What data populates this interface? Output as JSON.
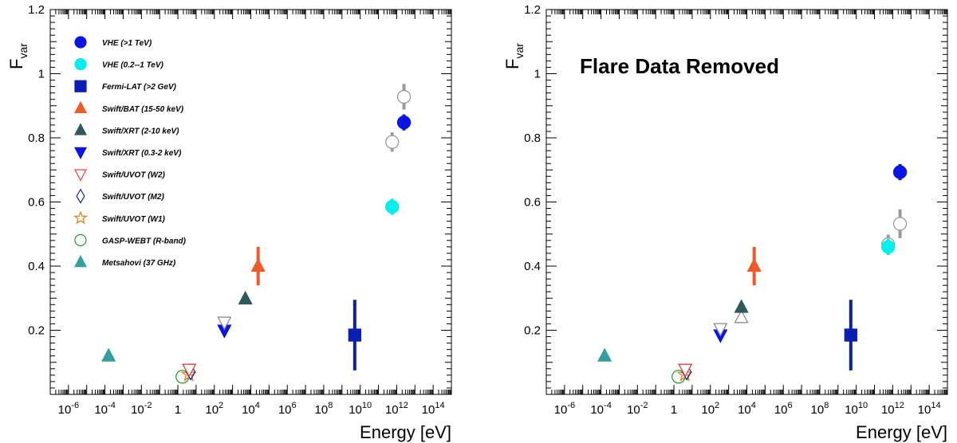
{
  "chart_data": [
    {
      "type": "scatter",
      "panel": "left",
      "title": "",
      "annotation": "",
      "xlabel": "Energy [eV]",
      "ylabel": "F",
      "ylabel_sub": "var",
      "xscale": "log",
      "xlim_log10": [
        -7,
        15
      ],
      "ylim": [
        0,
        1.2
      ],
      "xticks": [
        {
          "base": "10",
          "exp": "-6",
          "log": -6
        },
        {
          "base": "10",
          "exp": "-4",
          "log": -4
        },
        {
          "base": "10",
          "exp": "-2",
          "log": -2
        },
        {
          "base": "1",
          "exp": "",
          "log": 0
        },
        {
          "base": "10",
          "exp": "2",
          "log": 2
        },
        {
          "base": "10",
          "exp": "4",
          "log": 4
        },
        {
          "base": "10",
          "exp": "6",
          "log": 6
        },
        {
          "base": "10",
          "exp": "8",
          "log": 8
        },
        {
          "base": "10",
          "exp": "10",
          "log": 10
        },
        {
          "base": "10",
          "exp": "12",
          "log": 12
        },
        {
          "base": "10",
          "exp": "14",
          "log": 14
        }
      ],
      "yticks": [
        {
          "v": 0.2,
          "label": "0.2"
        },
        {
          "v": 0.4,
          "label": "0.4"
        },
        {
          "v": 0.6,
          "label": "0.6"
        },
        {
          "v": 0.8,
          "label": "0.8"
        },
        {
          "v": 1.0,
          "label": "1"
        },
        {
          "v": 1.2,
          "label": "1.2"
        }
      ],
      "legend": [
        {
          "name": "VHE (>1 TeV)",
          "marker": "circle",
          "color": "#0a14e6",
          "filled": true
        },
        {
          "name": "VHE (0.2--1 TeV)",
          "marker": "circle",
          "color": "#00f0f0",
          "filled": true
        },
        {
          "name": "Fermi-LAT (>2 GeV)",
          "marker": "square",
          "color": "#0a1eb4",
          "filled": true
        },
        {
          "name": "Swift/BAT (15-50 keV)",
          "marker": "triangle-up",
          "color": "#f05a28",
          "filled": true
        },
        {
          "name": "Swift/XRT (2-10 keV)",
          "marker": "triangle-up",
          "color": "#2e5a5c",
          "filled": true
        },
        {
          "name": "Swift/XRT (0.3-2 keV)",
          "marker": "triangle-down",
          "color": "#0a14e6",
          "filled": true
        },
        {
          "name": "Swift/UVOT (W2)",
          "marker": "triangle-down",
          "color": "#f03c3c",
          "filled": false
        },
        {
          "name": "Swift/UVOT (M2)",
          "marker": "diamond",
          "color": "#1428a0",
          "filled": false
        },
        {
          "name": "Swift/UVOT (W1)",
          "marker": "star",
          "color": "#e87a1e",
          "filled": false
        },
        {
          "name": "GASP-WEBT (R-band)",
          "marker": "circle",
          "color": "#28a028",
          "filled": false
        },
        {
          "name": "Metsahovi (37 GHz)",
          "marker": "triangle-up",
          "color": "#32a0a0",
          "filled": true
        }
      ],
      "points": [
        {
          "series": "Metsahovi (37 GHz)",
          "logx": -3.8,
          "y": 0.12,
          "err": 0,
          "marker": "triangle-up",
          "color": "#32a0a0",
          "filled": true
        },
        {
          "series": "GASP-WEBT (R-band)",
          "logx": 0.25,
          "y": 0.055,
          "err": 0,
          "marker": "circle",
          "color": "#28a028",
          "filled": false
        },
        {
          "series": "Swift/UVOT (W1)",
          "logx": 0.6,
          "y": 0.062,
          "err": 0,
          "marker": "star",
          "color": "#e87a1e",
          "filled": false
        },
        {
          "series": "Swift/UVOT (M2)",
          "logx": 0.7,
          "y": 0.07,
          "err": 0,
          "marker": "diamond",
          "color": "#1428a0",
          "filled": false
        },
        {
          "series": "Swift/UVOT (W2)",
          "logx": 0.62,
          "y": 0.078,
          "err": 0,
          "marker": "triangle-down",
          "color": "#f03c3c",
          "filled": false
        },
        {
          "series": "Swift/XRT (0.3-2 keV)",
          "logx": 2.55,
          "y": 0.2,
          "err": 0,
          "marker": "triangle-down",
          "color": "#0a14e6",
          "filled": true
        },
        {
          "series": "Swift/XRT (0.3-2 keV) flare",
          "logx": 2.55,
          "y": 0.225,
          "err": 0,
          "marker": "triangle-down",
          "color": "#8c8c8c",
          "filled": false
        },
        {
          "series": "Swift/XRT (2-10 keV)",
          "logx": 3.7,
          "y": 0.298,
          "err": 0,
          "marker": "triangle-up",
          "color": "#2e5a5c",
          "filled": true
        },
        {
          "series": "Swift/BAT (15-50 keV)",
          "logx": 4.4,
          "y": 0.4,
          "err": 0.06,
          "marker": "triangle-up",
          "color": "#f05a28",
          "filled": true
        },
        {
          "series": "Fermi-LAT (>2 GeV)",
          "logx": 9.7,
          "y": 0.185,
          "err": 0.11,
          "marker": "square",
          "color": "#0a1eb4",
          "filled": true
        },
        {
          "series": "VHE (0.2--1 TeV)",
          "logx": 11.75,
          "y": 0.585,
          "err": 0.025,
          "marker": "circle",
          "color": "#00f0f0",
          "filled": true
        },
        {
          "series": "VHE (0.2--1 TeV) flare",
          "logx": 11.75,
          "y": 0.787,
          "err": 0.03,
          "marker": "circle",
          "color": "#9a9a9a",
          "filled": false
        },
        {
          "series": "VHE (>1 TeV)",
          "logx": 12.4,
          "y": 0.848,
          "err": 0.025,
          "marker": "circle",
          "color": "#0a14e6",
          "filled": true
        },
        {
          "series": "VHE (>1 TeV) flare",
          "logx": 12.4,
          "y": 0.928,
          "err": 0.04,
          "marker": "circle",
          "color": "#9a9a9a",
          "filled": false
        }
      ]
    },
    {
      "type": "scatter",
      "panel": "right",
      "title": "",
      "annotation": "Flare Data Removed",
      "xlabel": "Energy [eV]",
      "ylabel": "F",
      "ylabel_sub": "var",
      "xscale": "log",
      "xlim_log10": [
        -7,
        15
      ],
      "ylim": [
        0,
        1.2
      ],
      "xticks": [
        {
          "base": "10",
          "exp": "-6",
          "log": -6
        },
        {
          "base": "10",
          "exp": "-4",
          "log": -4
        },
        {
          "base": "10",
          "exp": "-2",
          "log": -2
        },
        {
          "base": "1",
          "exp": "",
          "log": 0
        },
        {
          "base": "10",
          "exp": "2",
          "log": 2
        },
        {
          "base": "10",
          "exp": "4",
          "log": 4
        },
        {
          "base": "10",
          "exp": "6",
          "log": 6
        },
        {
          "base": "10",
          "exp": "8",
          "log": 8
        },
        {
          "base": "10",
          "exp": "10",
          "log": 10
        },
        {
          "base": "10",
          "exp": "12",
          "log": 12
        },
        {
          "base": "10",
          "exp": "14",
          "log": 14
        }
      ],
      "yticks": [
        {
          "v": 0.2,
          "label": "0.2"
        },
        {
          "v": 0.4,
          "label": "0.4"
        },
        {
          "v": 0.6,
          "label": "0.6"
        },
        {
          "v": 0.8,
          "label": "0.8"
        },
        {
          "v": 1.0,
          "label": "1"
        },
        {
          "v": 1.2,
          "label": "1.2"
        }
      ],
      "legend": [],
      "points": [
        {
          "series": "Metsahovi (37 GHz)",
          "logx": -3.8,
          "y": 0.12,
          "err": 0,
          "marker": "triangle-up",
          "color": "#32a0a0",
          "filled": true
        },
        {
          "series": "GASP-WEBT (R-band)",
          "logx": 0.25,
          "y": 0.055,
          "err": 0,
          "marker": "circle",
          "color": "#28a028",
          "filled": false
        },
        {
          "series": "Swift/UVOT (W1)",
          "logx": 0.6,
          "y": 0.062,
          "err": 0,
          "marker": "star",
          "color": "#e87a1e",
          "filled": false
        },
        {
          "series": "Swift/UVOT (M2)",
          "logx": 0.7,
          "y": 0.07,
          "err": 0,
          "marker": "diamond",
          "color": "#1428a0",
          "filled": false
        },
        {
          "series": "Swift/UVOT (W2)",
          "logx": 0.62,
          "y": 0.078,
          "err": 0,
          "marker": "triangle-down",
          "color": "#f03c3c",
          "filled": false
        },
        {
          "series": "Swift/XRT (0.3-2 keV)",
          "logx": 2.55,
          "y": 0.185,
          "err": 0,
          "marker": "triangle-down",
          "color": "#0a14e6",
          "filled": true
        },
        {
          "series": "Swift/XRT (0.3-2 keV) flare",
          "logx": 2.55,
          "y": 0.205,
          "err": 0,
          "marker": "triangle-down",
          "color": "#8c8c8c",
          "filled": false
        },
        {
          "series": "Swift/XRT (2-10 keV) flare",
          "logx": 3.7,
          "y": 0.24,
          "err": 0,
          "marker": "triangle-up",
          "color": "#8c8c8c",
          "filled": false
        },
        {
          "series": "Swift/XRT (2-10 keV)",
          "logx": 3.7,
          "y": 0.272,
          "err": 0,
          "marker": "triangle-up",
          "color": "#2e5a5c",
          "filled": true
        },
        {
          "series": "Swift/BAT (15-50 keV)",
          "logx": 4.4,
          "y": 0.4,
          "err": 0.06,
          "marker": "triangle-up",
          "color": "#f05a28",
          "filled": true
        },
        {
          "series": "Fermi-LAT (>2 GeV)",
          "logx": 9.7,
          "y": 0.185,
          "err": 0.11,
          "marker": "square",
          "color": "#0a1eb4",
          "filled": true
        },
        {
          "series": "VHE (0.2--1 TeV) flare",
          "logx": 11.75,
          "y": 0.468,
          "err": 0.03,
          "marker": "circle",
          "color": "#9a9a9a",
          "filled": false
        },
        {
          "series": "VHE (0.2--1 TeV)",
          "logx": 11.75,
          "y": 0.46,
          "err": 0.025,
          "marker": "circle",
          "color": "#00f0f0",
          "filled": true
        },
        {
          "series": "VHE (>1 TeV) flare",
          "logx": 12.4,
          "y": 0.532,
          "err": 0.045,
          "marker": "circle",
          "color": "#9a9a9a",
          "filled": false
        },
        {
          "series": "VHE (>1 TeV)",
          "logx": 12.4,
          "y": 0.693,
          "err": 0.025,
          "marker": "circle",
          "color": "#0a14e6",
          "filled": true
        }
      ]
    }
  ]
}
